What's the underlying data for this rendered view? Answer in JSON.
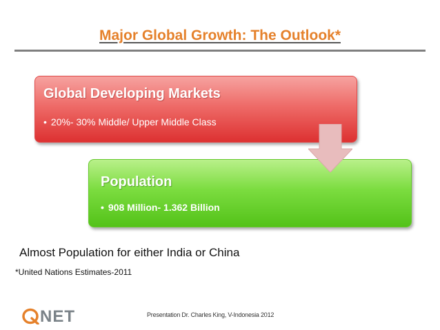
{
  "slide": {
    "title": "Major Global Growth: The Outlook*",
    "boxes": [
      {
        "heading": "Global Developing Markets",
        "bullet": "20%- 30% Middle/ Upper Middle Class"
      },
      {
        "heading": "Population",
        "bullet": "908 Million- 1.362 Billion"
      }
    ],
    "note": "Almost Population for either India or China",
    "source": "*United Nations Estimates-2011",
    "footer": "Presentation Dr. Charles King, V-Indonesia 2012",
    "logo": {
      "text": "NET",
      "icon": "q-logo-icon"
    }
  },
  "colors": {
    "title": "#e5812b",
    "red_box": "#ee6b68",
    "green_box": "#7bdc3f",
    "arrow": "#e8bcbd"
  }
}
